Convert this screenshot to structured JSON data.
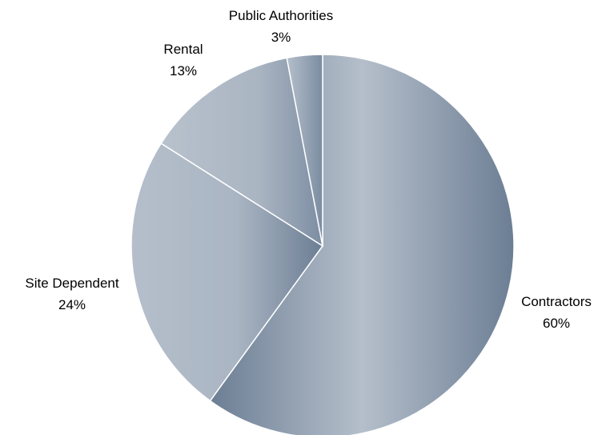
{
  "chart_data": {
    "type": "pie",
    "title": "",
    "slices": [
      {
        "label": "Contractors",
        "value": 60,
        "pct_label": "60%"
      },
      {
        "label": "Site Dependent",
        "value": 24,
        "pct_label": "24%"
      },
      {
        "label": "Rental",
        "value": 13,
        "pct_label": "13%"
      },
      {
        "label": "Public Authorities",
        "value": 3,
        "pct_label": "3%"
      }
    ],
    "start": "12 o'clock",
    "direction": "clockwise",
    "legend": "none",
    "colors": {
      "fill_dark": "#6c7e94",
      "fill_light": "#b5bfcb",
      "separator": "#ffffff"
    }
  }
}
